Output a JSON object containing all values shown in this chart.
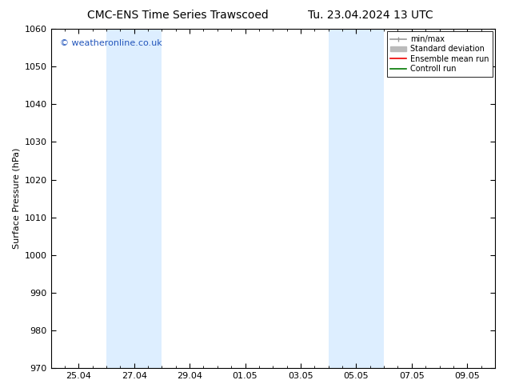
{
  "title_left": "CMC-ENS Time Series Trawscoed",
  "title_right": "Tu. 23.04.2024 13 UTC",
  "ylabel": "Surface Pressure (hPa)",
  "ylim": [
    970,
    1060
  ],
  "yticks": [
    970,
    980,
    990,
    1000,
    1010,
    1020,
    1030,
    1040,
    1050,
    1060
  ],
  "xtick_labels": [
    "25.04",
    "27.04",
    "29.04",
    "01.05",
    "03.05",
    "05.05",
    "07.05",
    "09.05"
  ],
  "xtick_positions": [
    2,
    6,
    10,
    14,
    18,
    22,
    26,
    30
  ],
  "xmin": 0,
  "xmax": 32,
  "shaded_bands": [
    {
      "x_start": 4,
      "x_end": 8
    },
    {
      "x_start": 20,
      "x_end": 24
    }
  ],
  "shaded_color": "#ddeeff",
  "watermark_text": "© weatheronline.co.uk",
  "watermark_color": "#2255bb",
  "legend_entries": [
    {
      "label": "min/max",
      "color": "#999999",
      "lw": 1.2
    },
    {
      "label": "Standard deviation",
      "color": "#bbbbbb",
      "lw": 5
    },
    {
      "label": "Ensemble mean run",
      "color": "#ee0000",
      "lw": 1.2
    },
    {
      "label": "Controll run",
      "color": "#007700",
      "lw": 1.2
    }
  ],
  "bg_color": "#ffffff",
  "title_fontsize": 10,
  "axis_label_fontsize": 8,
  "tick_fontsize": 8
}
